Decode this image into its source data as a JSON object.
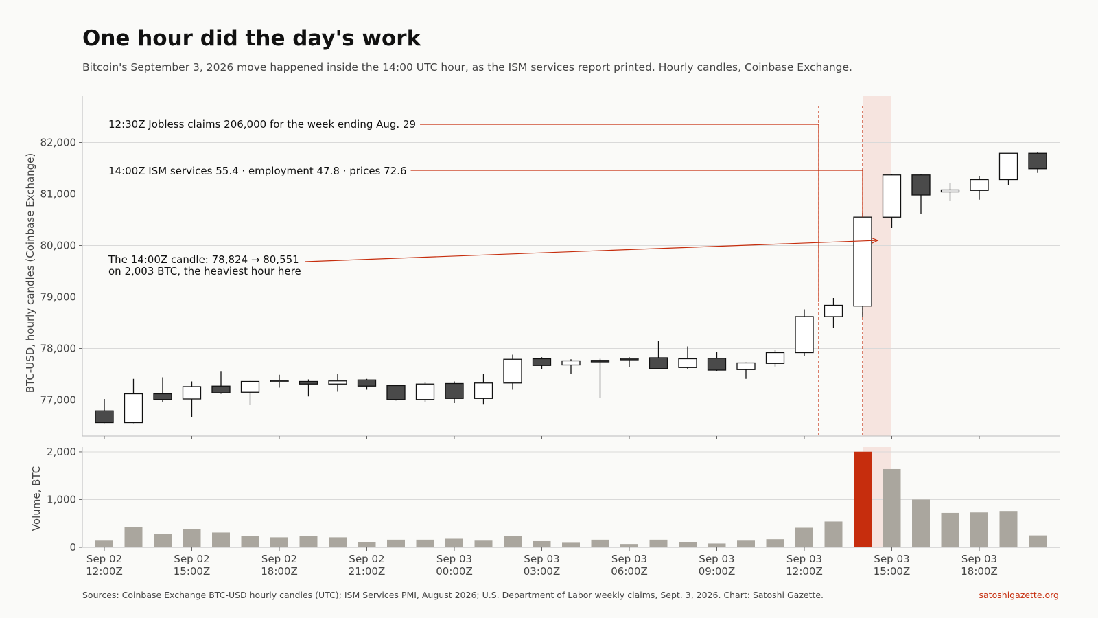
{
  "title": "One hour did the day's work",
  "subtitle": "Bitcoin's September 3, 2026 move happened inside the 14:00 UTC hour, as the ISM services report printed. Hourly candles, Coinbase Exchange.",
  "footer": {
    "sources": "Sources: Coinbase Exchange BTC-USD hourly candles (UTC); ISM Services PMI, August 2026; U.S. Department of Labor weekly claims, Sept. 3, 2026.  Chart: Satoshi Gazette.",
    "site": "satoshigazette.org"
  },
  "colors": {
    "up_fill": "#ffffff",
    "down_fill": "#4a4a4a",
    "candle_stroke": "#111111",
    "volume": "#aaa69e",
    "highlight_volume": "#c62d0d",
    "accent": "#c62d0d",
    "highlight_band": "#f6e4df",
    "grid": "#d9d9d9"
  },
  "chart_data": [
    {
      "type": "candlestick",
      "ylabel": "BTC-USD, hourly candles (Coinbase Exchange)",
      "ylim": [
        76300,
        82900
      ],
      "yticks": [
        77000,
        78000,
        79000,
        80000,
        81000,
        82000
      ],
      "ytick_labels": [
        "77,000",
        "78,000",
        "79,000",
        "80,000",
        "81,000",
        "82,000"
      ],
      "x": [
        "Sep 02 12:00Z",
        "Sep 02 13:00Z",
        "Sep 02 14:00Z",
        "Sep 02 15:00Z",
        "Sep 02 16:00Z",
        "Sep 02 17:00Z",
        "Sep 02 18:00Z",
        "Sep 02 19:00Z",
        "Sep 02 20:00Z",
        "Sep 02 21:00Z",
        "Sep 02 22:00Z",
        "Sep 02 23:00Z",
        "Sep 03 00:00Z",
        "Sep 03 01:00Z",
        "Sep 03 02:00Z",
        "Sep 03 03:00Z",
        "Sep 03 04:00Z",
        "Sep 03 05:00Z",
        "Sep 03 06:00Z",
        "Sep 03 07:00Z",
        "Sep 03 08:00Z",
        "Sep 03 09:00Z",
        "Sep 03 10:00Z",
        "Sep 03 11:00Z",
        "Sep 03 12:00Z",
        "Sep 03 13:00Z",
        "Sep 03 14:00Z",
        "Sep 03 15:00Z",
        "Sep 03 16:00Z",
        "Sep 03 17:00Z",
        "Sep 03 18:00Z",
        "Sep 03 19:00Z",
        "Sep 03 20:00Z"
      ],
      "open": [
        76790,
        76560,
        77120,
        77020,
        77270,
        77150,
        77380,
        77360,
        77310,
        77390,
        77280,
        77010,
        77320,
        77030,
        77330,
        77800,
        77680,
        77770,
        77810,
        77820,
        77630,
        77810,
        77590,
        77710,
        77920,
        78620,
        78824,
        80550,
        81370,
        81040,
        81070,
        81280,
        81790
      ],
      "high": [
        77020,
        77410,
        77440,
        77360,
        77550,
        77370,
        77490,
        77400,
        77510,
        77410,
        77290,
        77350,
        77360,
        77510,
        77880,
        77830,
        77790,
        77800,
        77830,
        78150,
        78040,
        77940,
        77730,
        77970,
        78760,
        78980,
        80630,
        81380,
        81380,
        81210,
        81340,
        81790,
        81820
      ],
      "low": [
        76550,
        76550,
        76960,
        76660,
        77120,
        76900,
        77240,
        77070,
        77160,
        77200,
        76990,
        76960,
        76940,
        76910,
        77200,
        77600,
        77500,
        77040,
        77640,
        77600,
        77600,
        77560,
        77410,
        77650,
        77850,
        78400,
        78620,
        80340,
        80610,
        80870,
        80890,
        81170,
        81410
      ],
      "close": [
        76560,
        77120,
        77010,
        77260,
        77140,
        77360,
        77350,
        77310,
        77370,
        77270,
        77010,
        77310,
        77030,
        77330,
        77790,
        77670,
        77760,
        77740,
        77780,
        77610,
        77800,
        77580,
        77720,
        77920,
        78620,
        78840,
        80551,
        81370,
        80980,
        81080,
        81280,
        81790,
        81490
      ]
    },
    {
      "type": "bar",
      "ylabel": "Volume, BTC",
      "ylim": [
        0,
        2100
      ],
      "yticks": [
        0,
        1000,
        2000
      ],
      "ytick_labels": [
        "0",
        "1,000",
        "2,000"
      ],
      "xtick_labels": [
        [
          "Sep 02",
          "12:00Z"
        ],
        [
          "Sep 02",
          "15:00Z"
        ],
        [
          "Sep 02",
          "18:00Z"
        ],
        [
          "Sep 02",
          "21:00Z"
        ],
        [
          "Sep 03",
          "00:00Z"
        ],
        [
          "Sep 03",
          "03:00Z"
        ],
        [
          "Sep 03",
          "06:00Z"
        ],
        [
          "Sep 03",
          "09:00Z"
        ],
        [
          "Sep 03",
          "12:00Z"
        ],
        [
          "Sep 03",
          "15:00Z"
        ],
        [
          "Sep 03",
          "18:00Z"
        ]
      ],
      "values": [
        140,
        430,
        280,
        380,
        310,
        230,
        210,
        230,
        210,
        110,
        160,
        160,
        180,
        140,
        240,
        130,
        95,
        160,
        70,
        160,
        110,
        80,
        140,
        170,
        410,
        540,
        2003,
        1640,
        1000,
        720,
        730,
        760,
        250
      ],
      "highlight_index": 26
    }
  ],
  "annotations": [
    {
      "text": "12:30Z  Jobless claims 206,000 for the week ending Aug. 29",
      "time": "Sep 03 12:30Z"
    },
    {
      "text": "14:00Z  ISM services 55.4 · employment 47.8 · prices 72.6",
      "time": "Sep 03 14:00Z"
    },
    {
      "text_lines": [
        "The 14:00Z candle: 78,824 → 80,551",
        "on 2,003 BTC, the heaviest hour here"
      ],
      "time": "Sep 03 14:00Z"
    }
  ]
}
